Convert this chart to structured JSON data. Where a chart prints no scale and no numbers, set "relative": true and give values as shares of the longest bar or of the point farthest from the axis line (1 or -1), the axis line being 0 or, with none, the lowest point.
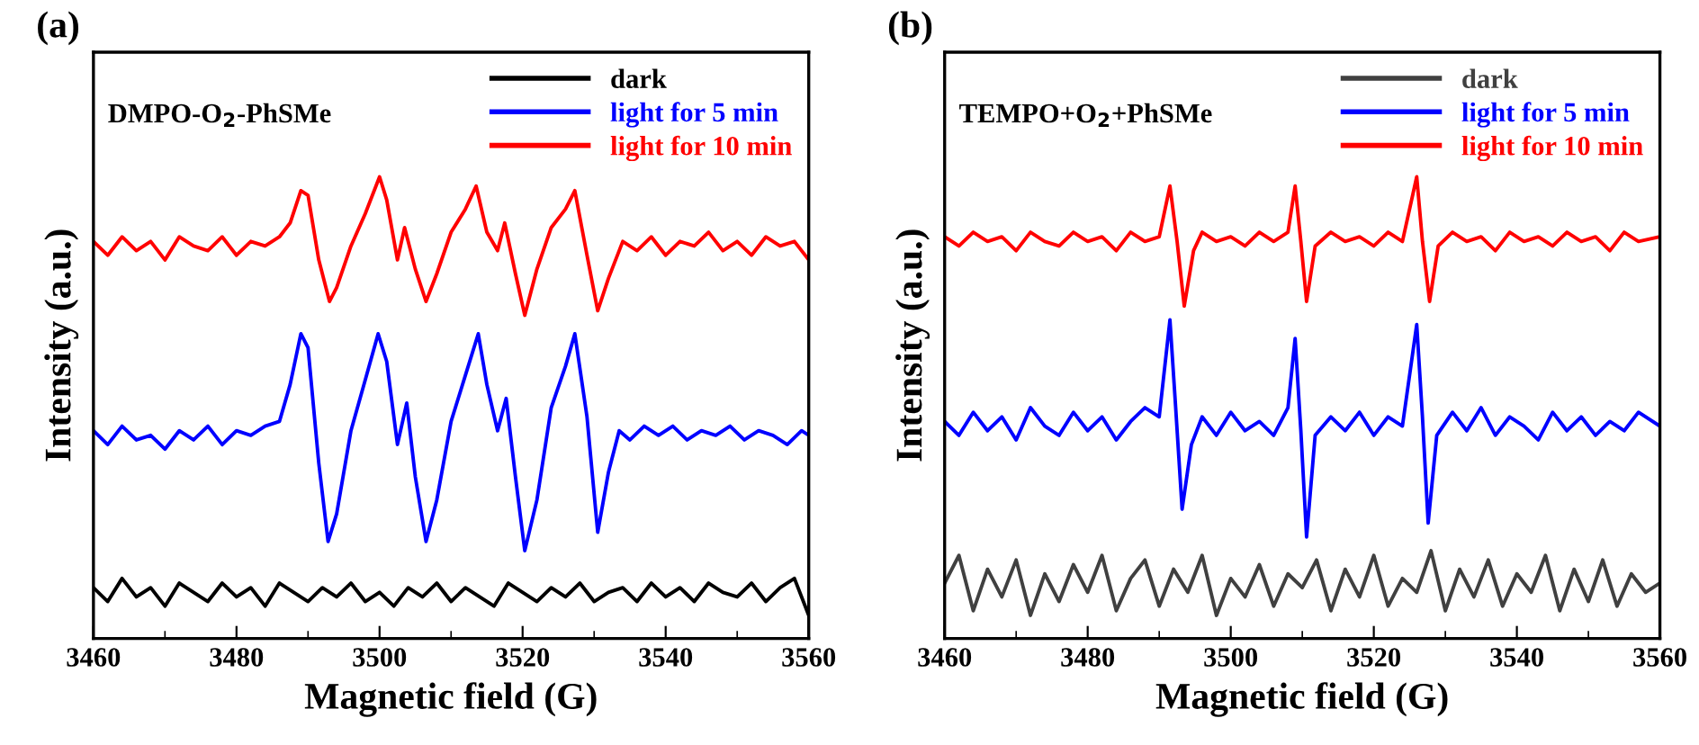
{
  "chart_data": [
    {
      "type": "line",
      "title": "(a)",
      "xlabel": "Magnetic field (G)",
      "ylabel": "Intensity (a.u.)",
      "relative": true,
      "xlim": [
        3460,
        3560
      ],
      "xticks": [
        3460,
        3480,
        3500,
        3520,
        3540,
        3560
      ],
      "legend": "top right",
      "grid": false,
      "annotations": [
        "DMPO-O$_{2}$-PhSMe"
      ],
      "series": [
        {
          "name": "dark",
          "color": "#000000",
          "x": [
            3460,
            3462,
            3464,
            3466,
            3468,
            3470,
            3472,
            3474,
            3476,
            3478,
            3480,
            3482,
            3484,
            3486,
            3488,
            3490,
            3492,
            3494,
            3496,
            3498,
            3500,
            3502,
            3504,
            3506,
            3508,
            3510,
            3512,
            3514,
            3516,
            3518,
            3520,
            3522,
            3524,
            3526,
            3528,
            3530,
            3532,
            3534,
            3536,
            3538,
            3540,
            3542,
            3544,
            3546,
            3548,
            3550,
            3552,
            3554,
            3556,
            3558,
            3560
          ],
          "values": [
            0.11,
            0.08,
            0.13,
            0.09,
            0.11,
            0.07,
            0.12,
            0.1,
            0.08,
            0.12,
            0.09,
            0.11,
            0.07,
            0.12,
            0.1,
            0.08,
            0.11,
            0.09,
            0.12,
            0.08,
            0.1,
            0.07,
            0.11,
            0.09,
            0.12,
            0.08,
            0.11,
            0.09,
            0.07,
            0.12,
            0.1,
            0.08,
            0.11,
            0.09,
            0.12,
            0.08,
            0.1,
            0.11,
            0.08,
            0.12,
            0.09,
            0.11,
            0.08,
            0.12,
            0.1,
            0.09,
            0.12,
            0.08,
            0.11,
            0.13,
            0.05
          ]
        },
        {
          "name": "light for 5 min",
          "color": "#0000ff",
          "x": [
            3460,
            3462,
            3464,
            3466,
            3468,
            3470,
            3472,
            3474,
            3476,
            3478,
            3480,
            3482,
            3484,
            3486,
            3487.5,
            3489,
            3490,
            3491.5,
            3492.8,
            3494,
            3496,
            3498,
            3499.8,
            3501,
            3502.5,
            3503.8,
            3505,
            3506.5,
            3508,
            3510,
            3512,
            3513.8,
            3515,
            3516.5,
            3517.7,
            3519,
            3520.3,
            3522,
            3524,
            3526,
            3527.3,
            3529,
            3530.5,
            3532,
            3533.5,
            3535,
            3537,
            3539,
            3541,
            3543,
            3545,
            3547,
            3549,
            3551,
            3553,
            3555,
            3557,
            3559,
            3560
          ],
          "values": [
            0.45,
            0.42,
            0.46,
            0.43,
            0.44,
            0.41,
            0.45,
            0.43,
            0.46,
            0.42,
            0.45,
            0.44,
            0.46,
            0.47,
            0.55,
            0.66,
            0.63,
            0.38,
            0.21,
            0.27,
            0.45,
            0.56,
            0.66,
            0.6,
            0.42,
            0.51,
            0.35,
            0.21,
            0.3,
            0.47,
            0.57,
            0.66,
            0.55,
            0.45,
            0.52,
            0.35,
            0.19,
            0.3,
            0.5,
            0.59,
            0.66,
            0.48,
            0.23,
            0.36,
            0.45,
            0.43,
            0.46,
            0.44,
            0.46,
            0.43,
            0.45,
            0.44,
            0.46,
            0.43,
            0.45,
            0.44,
            0.42,
            0.45,
            0.44
          ]
        },
        {
          "name": "light for 10 min",
          "color": "#ff0000",
          "x": [
            3460,
            3462,
            3464,
            3466,
            3468,
            3470,
            3472,
            3474,
            3476,
            3478,
            3480,
            3482,
            3484,
            3486,
            3487.5,
            3489,
            3490,
            3491.5,
            3493,
            3494,
            3496,
            3498,
            3500,
            3501,
            3502.5,
            3503.5,
            3505,
            3506.5,
            3508,
            3510,
            3512,
            3513.5,
            3515,
            3516.5,
            3517.5,
            3519,
            3520.3,
            3522,
            3524,
            3526,
            3527.3,
            3529,
            3530.5,
            3532,
            3534,
            3536,
            3538,
            3540,
            3542,
            3544,
            3546,
            3548,
            3550,
            3552,
            3554,
            3556,
            3558,
            3560
          ],
          "values": [
            0.86,
            0.83,
            0.87,
            0.84,
            0.86,
            0.82,
            0.87,
            0.85,
            0.84,
            0.87,
            0.83,
            0.86,
            0.85,
            0.87,
            0.9,
            0.97,
            0.96,
            0.82,
            0.73,
            0.76,
            0.85,
            0.92,
            1.0,
            0.95,
            0.82,
            0.89,
            0.8,
            0.73,
            0.79,
            0.88,
            0.93,
            0.98,
            0.88,
            0.84,
            0.9,
            0.79,
            0.7,
            0.8,
            0.89,
            0.93,
            0.97,
            0.83,
            0.71,
            0.78,
            0.86,
            0.84,
            0.87,
            0.83,
            0.86,
            0.85,
            0.88,
            0.84,
            0.86,
            0.83,
            0.87,
            0.85,
            0.86,
            0.82
          ]
        }
      ]
    },
    {
      "type": "line",
      "title": "(b)",
      "xlabel": "Magnetic field (G)",
      "ylabel": "Intensity (a.u.)",
      "relative": true,
      "xlim": [
        3460,
        3560
      ],
      "xticks": [
        3460,
        3480,
        3500,
        3520,
        3540,
        3560
      ],
      "legend": "top right",
      "grid": false,
      "annotations": [
        "TEMPO+O$_{2}$+PhSMe"
      ],
      "series": [
        {
          "name": "dark",
          "color": "#404040",
          "x": [
            3460,
            3462,
            3464,
            3466,
            3468,
            3470,
            3472,
            3474,
            3476,
            3478,
            3480,
            3482,
            3484,
            3486,
            3488,
            3490,
            3492,
            3494,
            3496,
            3498,
            3500,
            3502,
            3504,
            3506,
            3508,
            3510,
            3512,
            3514,
            3516,
            3518,
            3520,
            3522,
            3524,
            3526,
            3528,
            3530,
            3532,
            3534,
            3536,
            3538,
            3540,
            3542,
            3544,
            3546,
            3548,
            3550,
            3552,
            3554,
            3556,
            3558,
            3560
          ],
          "values": [
            0.12,
            0.18,
            0.06,
            0.15,
            0.09,
            0.17,
            0.05,
            0.14,
            0.08,
            0.16,
            0.1,
            0.18,
            0.06,
            0.13,
            0.17,
            0.07,
            0.15,
            0.1,
            0.18,
            0.05,
            0.13,
            0.09,
            0.16,
            0.07,
            0.14,
            0.11,
            0.17,
            0.06,
            0.15,
            0.09,
            0.18,
            0.07,
            0.13,
            0.1,
            0.19,
            0.06,
            0.15,
            0.09,
            0.17,
            0.07,
            0.14,
            0.1,
            0.18,
            0.06,
            0.15,
            0.08,
            0.17,
            0.07,
            0.14,
            0.1,
            0.12
          ]
        },
        {
          "name": "light for 5 min",
          "color": "#0000ff",
          "x": [
            3460,
            3462,
            3464,
            3466,
            3468,
            3470,
            3472,
            3474,
            3476,
            3478,
            3480,
            3482,
            3484,
            3486,
            3488,
            3490,
            3491.5,
            3492.3,
            3493.2,
            3494.5,
            3496,
            3498,
            3500,
            3502,
            3504,
            3506,
            3508,
            3509,
            3509.8,
            3510.6,
            3511.8,
            3514,
            3516,
            3518,
            3520,
            3522,
            3524,
            3526,
            3526.8,
            3527.6,
            3528.8,
            3531,
            3533,
            3535,
            3537,
            3539,
            3541,
            3543,
            3545,
            3547,
            3549,
            3551,
            3553,
            3555,
            3557,
            3560
          ],
          "values": [
            0.47,
            0.44,
            0.49,
            0.45,
            0.48,
            0.43,
            0.5,
            0.46,
            0.44,
            0.49,
            0.45,
            0.48,
            0.43,
            0.47,
            0.5,
            0.48,
            0.69,
            0.5,
            0.28,
            0.42,
            0.48,
            0.44,
            0.49,
            0.45,
            0.47,
            0.44,
            0.5,
            0.65,
            0.45,
            0.22,
            0.44,
            0.48,
            0.45,
            0.49,
            0.44,
            0.48,
            0.46,
            0.68,
            0.48,
            0.25,
            0.44,
            0.49,
            0.45,
            0.5,
            0.44,
            0.48,
            0.46,
            0.43,
            0.49,
            0.45,
            0.48,
            0.44,
            0.47,
            0.45,
            0.49,
            0.46
          ]
        },
        {
          "name": "light for 10 min",
          "color": "#ff0000",
          "x": [
            3460,
            3462,
            3464,
            3466,
            3468,
            3470,
            3472,
            3474,
            3476,
            3478,
            3480,
            3482,
            3484,
            3486,
            3488,
            3490,
            3491.5,
            3492.5,
            3493.5,
            3494.8,
            3496,
            3498,
            3500,
            3502,
            3504,
            3506,
            3508,
            3509,
            3509.8,
            3510.6,
            3511.8,
            3514,
            3516,
            3518,
            3520,
            3522,
            3524,
            3526,
            3526.8,
            3527.8,
            3529,
            3531,
            3533,
            3535,
            3537,
            3539,
            3541,
            3543,
            3545,
            3547,
            3549,
            3551,
            3553,
            3555,
            3557,
            3560
          ],
          "values": [
            0.87,
            0.85,
            0.88,
            0.86,
            0.87,
            0.84,
            0.88,
            0.86,
            0.85,
            0.88,
            0.86,
            0.87,
            0.84,
            0.88,
            0.86,
            0.87,
            0.98,
            0.86,
            0.72,
            0.84,
            0.88,
            0.86,
            0.87,
            0.85,
            0.88,
            0.86,
            0.88,
            0.98,
            0.86,
            0.73,
            0.85,
            0.88,
            0.86,
            0.87,
            0.85,
            0.88,
            0.86,
            1.0,
            0.86,
            0.73,
            0.85,
            0.88,
            0.86,
            0.87,
            0.84,
            0.88,
            0.86,
            0.87,
            0.85,
            0.88,
            0.86,
            0.87,
            0.84,
            0.88,
            0.86,
            0.87
          ]
        }
      ]
    }
  ]
}
